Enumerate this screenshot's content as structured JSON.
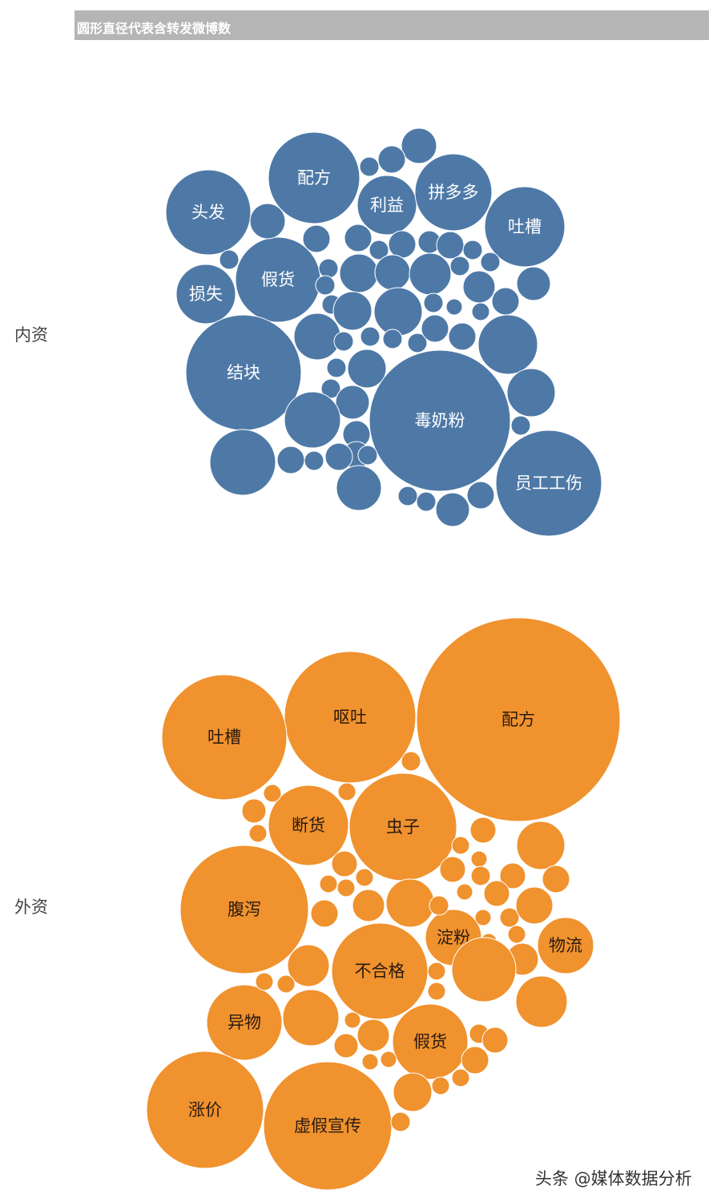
{
  "header": {
    "title": "圆形直径代表含转发微博数"
  },
  "footer": {
    "text": "头条 @媒体数据分析"
  },
  "chart_data": [
    {
      "type": "bubble",
      "group": "内资",
      "color": "#4e79a7",
      "label_color": "#ffffff",
      "size_meaning": "圆形直径代表含转发微博数",
      "bubbles": [
        {
          "label": "配方",
          "size": 114
        },
        {
          "label": "头发",
          "size": 106
        },
        {
          "label": "利益",
          "size": 74
        },
        {
          "label": "拼多多",
          "size": 96
        },
        {
          "label": "吐槽",
          "size": 100
        },
        {
          "label": "假货",
          "size": 106
        },
        {
          "label": "损失",
          "size": 74
        },
        {
          "label": "结块",
          "size": 144
        },
        {
          "label": "毒奶粉",
          "size": 176
        },
        {
          "label": "员工工伤",
          "size": 132
        },
        {
          "label": "",
          "size": 44
        },
        {
          "label": "",
          "size": 34
        },
        {
          "label": "",
          "size": 24
        },
        {
          "label": "",
          "size": 44
        },
        {
          "label": "",
          "size": 24
        },
        {
          "label": "",
          "size": 34
        },
        {
          "label": "",
          "size": 34
        },
        {
          "label": "",
          "size": 24
        },
        {
          "label": "",
          "size": 34
        },
        {
          "label": "",
          "size": 28
        },
        {
          "label": "",
          "size": 34
        },
        {
          "label": "",
          "size": 24
        },
        {
          "label": "",
          "size": 24
        },
        {
          "label": "",
          "size": 24
        },
        {
          "label": "",
          "size": 48
        },
        {
          "label": "",
          "size": 44
        },
        {
          "label": "",
          "size": 52
        },
        {
          "label": "",
          "size": 24
        },
        {
          "label": "",
          "size": 40
        },
        {
          "label": "",
          "size": 42
        },
        {
          "label": "",
          "size": 24
        },
        {
          "label": "",
          "size": 24
        },
        {
          "label": "",
          "size": 48
        },
        {
          "label": "",
          "size": 60
        },
        {
          "label": "",
          "size": 24
        },
        {
          "label": "",
          "size": 20
        },
        {
          "label": "",
          "size": 22
        },
        {
          "label": "",
          "size": 34
        },
        {
          "label": "",
          "size": 58
        },
        {
          "label": "",
          "size": 24
        },
        {
          "label": "",
          "size": 24
        },
        {
          "label": "",
          "size": 24
        },
        {
          "label": "",
          "size": 24
        },
        {
          "label": "",
          "size": 34
        },
        {
          "label": "",
          "size": 34
        },
        {
          "label": "",
          "size": 74
        },
        {
          "label": "",
          "size": 24
        },
        {
          "label": "",
          "size": 48
        },
        {
          "label": "",
          "size": 24
        },
        {
          "label": "",
          "size": 42
        },
        {
          "label": "",
          "size": 60
        },
        {
          "label": "",
          "size": 24
        },
        {
          "label": "",
          "size": 70
        },
        {
          "label": "",
          "size": 34
        },
        {
          "label": "",
          "size": 34
        },
        {
          "label": "",
          "size": 82
        },
        {
          "label": "",
          "size": 34
        },
        {
          "label": "",
          "size": 24
        },
        {
          "label": "",
          "size": 34
        },
        {
          "label": "",
          "size": 24
        },
        {
          "label": "",
          "size": 56
        },
        {
          "label": "",
          "size": 24
        },
        {
          "label": "",
          "size": 24
        },
        {
          "label": "",
          "size": 42
        },
        {
          "label": "",
          "size": 34
        }
      ]
    },
    {
      "type": "bubble",
      "group": "外资",
      "color": "#f0922e",
      "label_color": "#2a1a10",
      "size_meaning": "圆形直径代表含转发微博数",
      "bubbles": [
        {
          "label": "配方",
          "size": 254
        },
        {
          "label": "呕吐",
          "size": 164
        },
        {
          "label": "吐槽",
          "size": 156
        },
        {
          "label": "虫子",
          "size": 134
        },
        {
          "label": "断货",
          "size": 100
        },
        {
          "label": "腹泻",
          "size": 160
        },
        {
          "label": "不合格",
          "size": 120
        },
        {
          "label": "淀粉",
          "size": 70
        },
        {
          "label": "物流",
          "size": 70
        },
        {
          "label": "异物",
          "size": 94
        },
        {
          "label": "假货",
          "size": 94
        },
        {
          "label": "涨价",
          "size": 146
        },
        {
          "label": "虚假宣传",
          "size": 160
        },
        {
          "label": "",
          "size": 24
        },
        {
          "label": "",
          "size": 22
        },
        {
          "label": "",
          "size": 30
        },
        {
          "label": "",
          "size": 22
        },
        {
          "label": "",
          "size": 22
        },
        {
          "label": "",
          "size": 32
        },
        {
          "label": "",
          "size": 60
        },
        {
          "label": "",
          "size": 22
        },
        {
          "label": "",
          "size": 20
        },
        {
          "label": "",
          "size": 32
        },
        {
          "label": "",
          "size": 32
        },
        {
          "label": "",
          "size": 24
        },
        {
          "label": "",
          "size": 32
        },
        {
          "label": "",
          "size": 34
        },
        {
          "label": "",
          "size": 22
        },
        {
          "label": "",
          "size": 22
        },
        {
          "label": "",
          "size": 22
        },
        {
          "label": "",
          "size": 60
        },
        {
          "label": "",
          "size": 40
        },
        {
          "label": "",
          "size": 34
        },
        {
          "label": "",
          "size": 24
        },
        {
          "label": "",
          "size": 20
        },
        {
          "label": "",
          "size": 32
        },
        {
          "label": "",
          "size": 20
        },
        {
          "label": "",
          "size": 24
        },
        {
          "label": "",
          "size": 46
        },
        {
          "label": "",
          "size": 22
        },
        {
          "label": "",
          "size": 20
        },
        {
          "label": "",
          "size": 40
        },
        {
          "label": "",
          "size": 80
        },
        {
          "label": "",
          "size": 64
        },
        {
          "label": "",
          "size": 52
        },
        {
          "label": "",
          "size": 22
        },
        {
          "label": "",
          "size": 22
        },
        {
          "label": "",
          "size": 22
        },
        {
          "label": "",
          "size": 22
        },
        {
          "label": "",
          "size": 70
        },
        {
          "label": "",
          "size": 20
        },
        {
          "label": "",
          "size": 40
        },
        {
          "label": "",
          "size": 30
        },
        {
          "label": "",
          "size": 20
        },
        {
          "label": "",
          "size": 20
        },
        {
          "label": "",
          "size": 24
        },
        {
          "label": "",
          "size": 32
        },
        {
          "label": "",
          "size": 34
        },
        {
          "label": "",
          "size": 48
        },
        {
          "label": "",
          "size": 22
        },
        {
          "label": "",
          "size": 22
        },
        {
          "label": "",
          "size": 24
        }
      ]
    }
  ]
}
